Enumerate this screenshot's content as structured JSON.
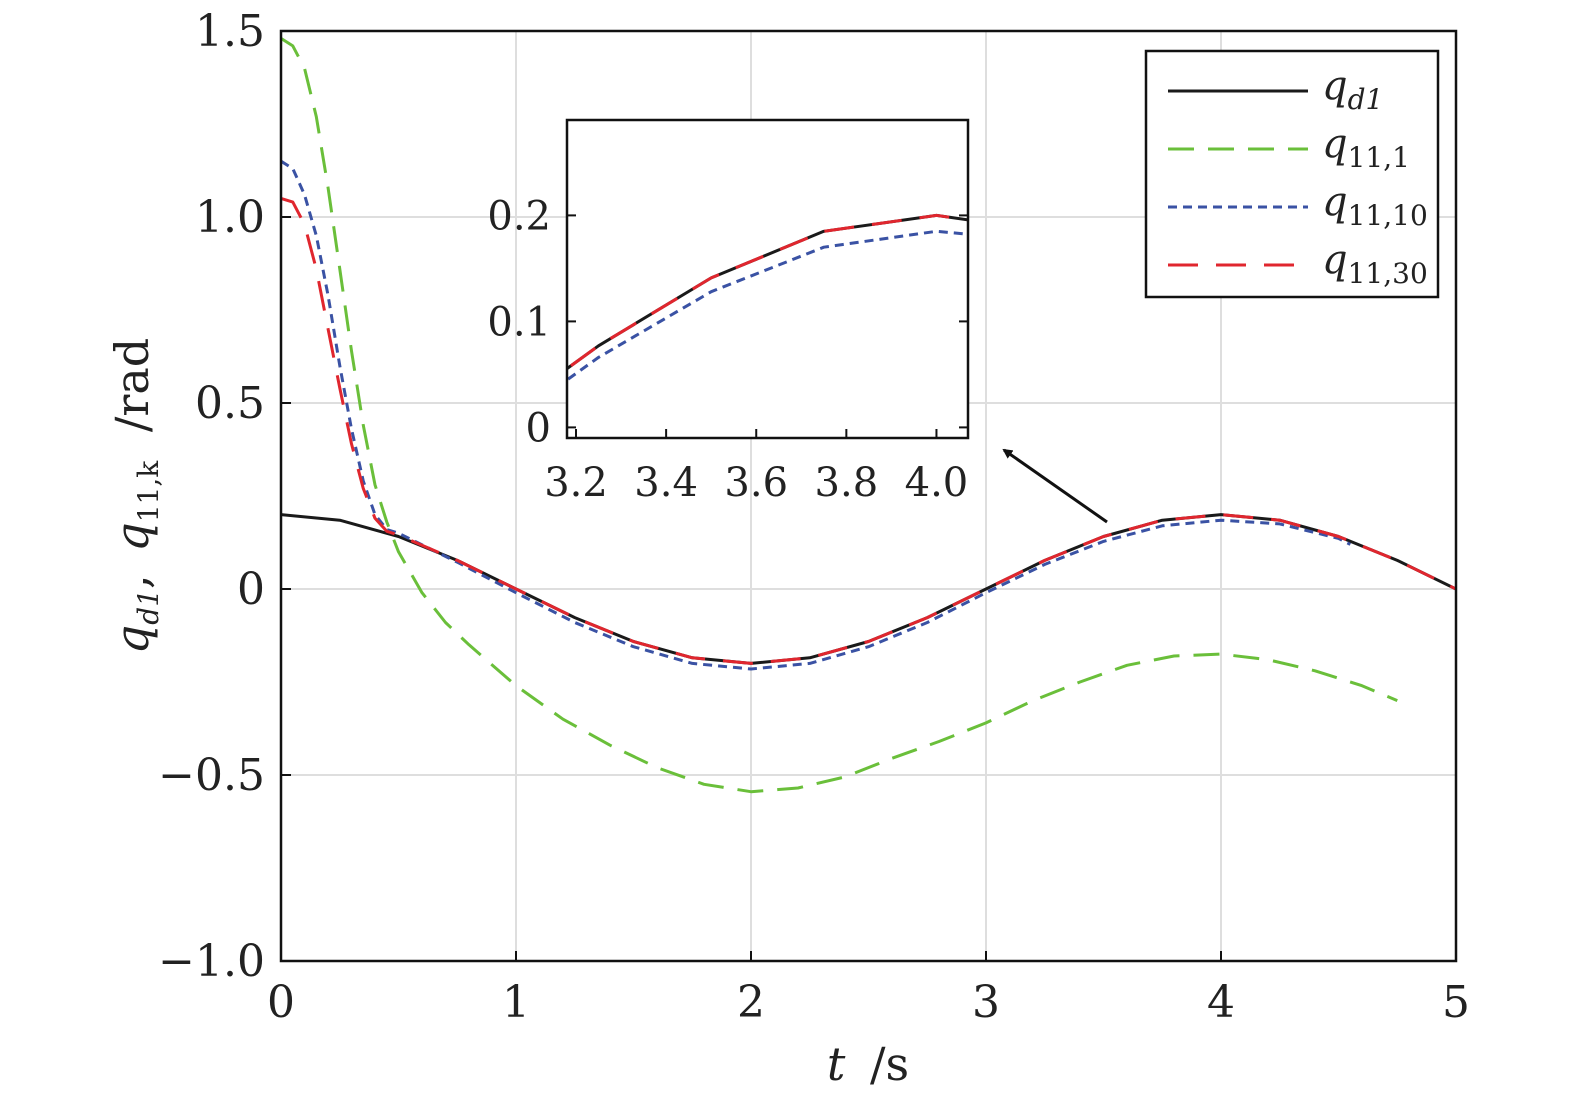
{
  "chart_data": {
    "type": "line",
    "xlabel_var": "t",
    "xlabel_unit": "/s",
    "ylabel_vars": [
      "q",
      "d1",
      ",",
      "q",
      "11,k"
    ],
    "ylabel_unit": "/rad",
    "xlim": [
      0,
      5
    ],
    "ylim": [
      -1.0,
      1.5
    ],
    "x_ticks": [
      0,
      1,
      2,
      3,
      4,
      5
    ],
    "x_tick_labels": [
      "0",
      "1",
      "2",
      "3",
      "4",
      "5"
    ],
    "y_ticks": [
      -1.0,
      -0.5,
      0,
      0.5,
      1.0,
      1.5
    ],
    "y_tick_labels": [
      "−1.0",
      "−0.5",
      "0",
      "0.5",
      "1.0",
      "1.5"
    ],
    "grid": true,
    "legend_position": "top-right",
    "series": [
      {
        "legend_main": "q",
        "legend_sub": "d1",
        "color": "#1a1a1a",
        "style": "solid",
        "x": [
          0,
          0.25,
          0.5,
          0.75,
          1.0,
          1.25,
          1.5,
          1.75,
          2.0,
          2.25,
          2.5,
          2.75,
          3.0,
          3.25,
          3.5,
          3.75,
          4.0,
          4.25,
          4.5,
          4.75,
          5.0
        ],
        "y": [
          0.2,
          0.185,
          0.141,
          0.077,
          0.0,
          -0.077,
          -0.141,
          -0.185,
          -0.2,
          -0.185,
          -0.141,
          -0.077,
          0.0,
          0.077,
          0.141,
          0.185,
          0.2,
          0.185,
          0.141,
          0.077,
          0.0
        ]
      },
      {
        "legend_main": "q",
        "legend_sub": "11,1",
        "color": "#6abf3a",
        "style": "long-dash",
        "x": [
          0,
          0.05,
          0.1,
          0.15,
          0.2,
          0.25,
          0.3,
          0.35,
          0.4,
          0.45,
          0.5,
          0.6,
          0.7,
          0.8,
          1.0,
          1.2,
          1.4,
          1.6,
          1.8,
          2.0,
          2.2,
          2.4,
          2.6,
          2.8,
          3.0,
          3.2,
          3.4,
          3.6,
          3.8,
          4.0,
          4.2,
          4.4,
          4.6,
          4.75
        ],
        "y": [
          1.48,
          1.46,
          1.4,
          1.27,
          1.08,
          0.86,
          0.64,
          0.44,
          0.28,
          0.18,
          0.1,
          -0.01,
          -0.09,
          -0.15,
          -0.26,
          -0.35,
          -0.42,
          -0.48,
          -0.525,
          -0.545,
          -0.535,
          -0.505,
          -0.455,
          -0.41,
          -0.36,
          -0.3,
          -0.25,
          -0.205,
          -0.18,
          -0.175,
          -0.19,
          -0.22,
          -0.26,
          -0.3
        ]
      },
      {
        "legend_main": "q",
        "legend_sub": "11,10",
        "color": "#3a52a4",
        "style": "short-dash",
        "x": [
          0,
          0.05,
          0.1,
          0.15,
          0.2,
          0.25,
          0.3,
          0.35,
          0.4,
          0.45,
          0.5,
          0.75,
          1.0,
          1.25,
          1.5,
          1.75,
          2.0,
          2.25,
          2.5,
          2.75,
          3.0,
          3.25,
          3.5,
          3.75,
          4.0,
          4.25,
          4.5,
          4.55
        ],
        "y": [
          1.15,
          1.13,
          1.06,
          0.95,
          0.79,
          0.6,
          0.43,
          0.29,
          0.2,
          0.16,
          0.15,
          0.072,
          -0.01,
          -0.09,
          -0.155,
          -0.2,
          -0.215,
          -0.2,
          -0.155,
          -0.09,
          -0.01,
          0.066,
          0.128,
          0.17,
          0.185,
          0.175,
          0.136,
          0.12
        ]
      },
      {
        "legend_main": "q",
        "legend_sub": "11,30",
        "color": "#e0262e",
        "style": "dash",
        "x": [
          0,
          0.05,
          0.1,
          0.15,
          0.2,
          0.25,
          0.3,
          0.35,
          0.4,
          0.45,
          0.5,
          0.75,
          1.0,
          1.25,
          1.5,
          1.75,
          2.0,
          2.25,
          2.5,
          2.75,
          3.0,
          3.25,
          3.5,
          3.75,
          4.0,
          4.25,
          4.5,
          4.75,
          5.0
        ],
        "y": [
          1.05,
          1.04,
          0.98,
          0.86,
          0.7,
          0.54,
          0.39,
          0.27,
          0.19,
          0.155,
          0.145,
          0.077,
          0.0,
          -0.077,
          -0.141,
          -0.185,
          -0.2,
          -0.185,
          -0.141,
          -0.077,
          0.0,
          0.077,
          0.141,
          0.185,
          0.2,
          0.185,
          0.141,
          0.077,
          0.0
        ]
      }
    ],
    "inset": {
      "xlim": [
        3.18,
        4.07
      ],
      "ylim": [
        -0.01,
        0.29
      ],
      "x_ticks": [
        3.2,
        3.4,
        3.6,
        3.8,
        4.0
      ],
      "x_tick_labels": [
        "3.2",
        "3.4",
        "3.6",
        "3.8",
        "4.0"
      ],
      "y_ticks": [
        0,
        0.1,
        0.2
      ],
      "y_tick_labels": [
        "0",
        "0.1",
        "0.2"
      ]
    }
  }
}
